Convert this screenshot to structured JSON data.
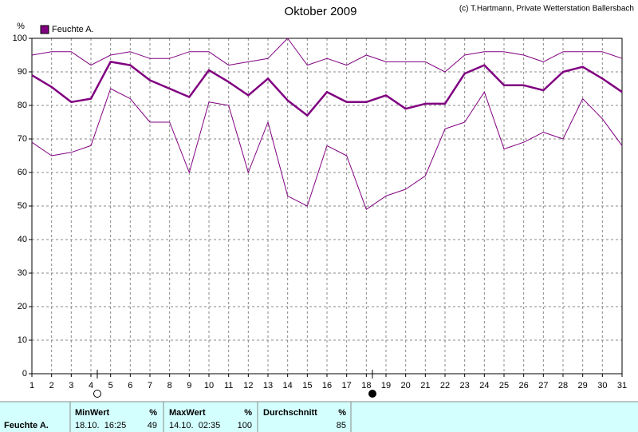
{
  "chart_data": {
    "type": "line",
    "title": "Oktober 2009",
    "subtitle": "(c) T.Hartmann, Private Wetterstation Ballersbach",
    "y_label": "%",
    "x": [
      1,
      2,
      3,
      4,
      5,
      6,
      7,
      8,
      9,
      10,
      11,
      12,
      13,
      14,
      15,
      16,
      17,
      18,
      19,
      20,
      21,
      22,
      23,
      24,
      25,
      26,
      27,
      28,
      29,
      30,
      31
    ],
    "xlim": [
      1,
      31
    ],
    "xticks": [
      1,
      2,
      3,
      4,
      5,
      6,
      7,
      8,
      9,
      10,
      11,
      12,
      13,
      14,
      15,
      16,
      17,
      18,
      19,
      20,
      21,
      22,
      23,
      24,
      25,
      26,
      27,
      28,
      29,
      30,
      31
    ],
    "ylim": [
      0,
      100
    ],
    "yticks": [
      0,
      10,
      20,
      30,
      40,
      50,
      60,
      70,
      80,
      90,
      100
    ],
    "grid": true,
    "legend": "top-left",
    "series": [
      {
        "color": "#800080",
        "width": 1,
        "values": [
          95,
          96,
          96,
          92,
          95,
          96,
          94,
          94,
          96,
          96,
          92,
          93,
          94,
          100,
          92,
          94,
          92,
          95,
          93,
          93,
          93,
          90,
          95,
          96,
          96,
          95,
          93,
          96,
          96,
          96,
          94
        ]
      },
      {
        "name": "Feuchte A.",
        "color": "#800080",
        "width": 2.5,
        "values": [
          89,
          85.5,
          81,
          82,
          93,
          92,
          87.5,
          85,
          82.5,
          90.5,
          87,
          83,
          88,
          81.5,
          77,
          84,
          81,
          81,
          83,
          79,
          80.5,
          80.5,
          89.5,
          92,
          86,
          86,
          84.5,
          90,
          91.5,
          88,
          84
        ]
      },
      {
        "color": "#800080",
        "width": 1,
        "values": [
          69,
          65,
          66,
          68,
          85,
          82,
          75,
          75,
          60,
          81,
          80,
          60,
          75,
          53,
          50,
          68,
          65,
          49,
          53,
          55,
          59,
          73,
          75,
          84,
          67,
          69,
          72,
          70,
          82,
          76,
          68
        ]
      }
    ]
  },
  "stats": {
    "row_label": "Feuchte A.",
    "columns": [
      {
        "header": "MinWert",
        "unit": "%",
        "when": "18.10.  16:25",
        "value": "49"
      },
      {
        "header": "MaxWert",
        "unit": "%",
        "when": "14.10.  02:35",
        "value": "100"
      },
      {
        "header": "Durchschnitt",
        "unit": "%",
        "when": "",
        "value": "85"
      }
    ]
  }
}
